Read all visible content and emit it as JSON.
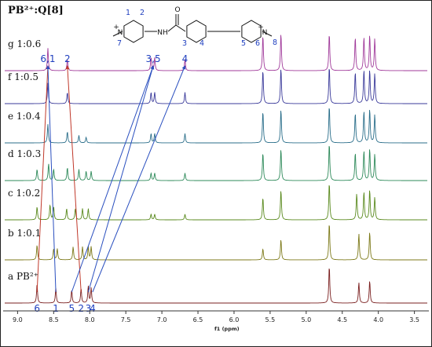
{
  "title": "PB²⁺:Q[8]",
  "molecule": {
    "atoms": {
      "amide_o": "O",
      "amide_nh": "NH",
      "n_left": "N",
      "n_right": "N",
      "charge": "+"
    },
    "numbers": [
      "1",
      "2",
      "3",
      "4",
      "5",
      "6",
      "7",
      "8"
    ]
  },
  "chart_data": {
    "type": "line",
    "title": "PB²⁺:Q[8]",
    "xlabel": "f1 (ppm)",
    "ylabel": "",
    "x_reversed": true,
    "xlim": [
      9.2,
      3.3
    ],
    "x_ticks": [
      "9.0",
      "8.5",
      "8.0",
      "7.5",
      "7.0",
      "6.5",
      "6.0",
      "5.5",
      "5.0",
      "4.5",
      "4.0",
      "3.5"
    ],
    "x_tick_values": [
      9.0,
      8.5,
      8.0,
      7.5,
      7.0,
      6.5,
      6.0,
      5.5,
      5.0,
      4.5,
      4.0,
      3.5
    ],
    "series": [
      {
        "name": "a PB²⁺",
        "color": "#7a1f1f",
        "peaks": [
          [
            8.73,
            0.5
          ],
          [
            8.47,
            0.4
          ],
          [
            8.25,
            0.35
          ],
          [
            8.12,
            0.4
          ],
          [
            8.02,
            0.45
          ],
          [
            7.98,
            0.4
          ],
          [
            4.68,
            1.0
          ],
          [
            4.27,
            0.55
          ],
          [
            4.12,
            0.6
          ]
        ]
      },
      {
        "name": "b 1:0.1",
        "color": "#7d7a1a",
        "peaks": [
          [
            8.73,
            0.4
          ],
          [
            8.5,
            0.3
          ],
          [
            8.45,
            0.3
          ],
          [
            8.23,
            0.35
          ],
          [
            8.1,
            0.35
          ],
          [
            8.02,
            0.35
          ],
          [
            7.98,
            0.35
          ],
          [
            5.6,
            0.3
          ],
          [
            5.35,
            0.55
          ],
          [
            4.68,
            1.0
          ],
          [
            4.27,
            0.7
          ],
          [
            4.12,
            0.75
          ]
        ]
      },
      {
        "name": "c 1:0.2",
        "color": "#5a8a1e",
        "peaks": [
          [
            8.73,
            0.35
          ],
          [
            8.55,
            0.4
          ],
          [
            8.5,
            0.35
          ],
          [
            8.32,
            0.3
          ],
          [
            8.2,
            0.3
          ],
          [
            8.1,
            0.3
          ],
          [
            8.02,
            0.3
          ],
          [
            7.15,
            0.15
          ],
          [
            7.1,
            0.15
          ],
          [
            6.68,
            0.15
          ],
          [
            5.6,
            0.6
          ],
          [
            5.35,
            0.8
          ],
          [
            4.68,
            1.0
          ],
          [
            4.3,
            0.7
          ],
          [
            4.2,
            0.75
          ],
          [
            4.12,
            0.8
          ],
          [
            4.05,
            0.6
          ]
        ]
      },
      {
        "name": "d 1:0.3",
        "color": "#2e8a5a",
        "peaks": [
          [
            8.73,
            0.3
          ],
          [
            8.57,
            0.45
          ],
          [
            8.5,
            0.3
          ],
          [
            8.31,
            0.35
          ],
          [
            8.15,
            0.3
          ],
          [
            8.05,
            0.25
          ],
          [
            7.98,
            0.25
          ],
          [
            7.15,
            0.2
          ],
          [
            7.1,
            0.2
          ],
          [
            6.68,
            0.2
          ],
          [
            5.6,
            0.75
          ],
          [
            5.35,
            0.85
          ],
          [
            4.68,
            1.0
          ],
          [
            4.32,
            0.75
          ],
          [
            4.2,
            0.8
          ],
          [
            4.12,
            0.85
          ],
          [
            4.05,
            0.7
          ]
        ]
      },
      {
        "name": "e 1:0.4",
        "color": "#2a6e8a",
        "peaks": [
          [
            8.58,
            0.5
          ],
          [
            8.31,
            0.3
          ],
          [
            8.15,
            0.2
          ],
          [
            8.05,
            0.15
          ],
          [
            7.15,
            0.25
          ],
          [
            7.1,
            0.25
          ],
          [
            6.68,
            0.25
          ],
          [
            5.6,
            0.85
          ],
          [
            5.35,
            0.9
          ],
          [
            4.68,
            1.0
          ],
          [
            4.32,
            0.8
          ],
          [
            4.2,
            0.85
          ],
          [
            4.12,
            0.9
          ],
          [
            4.05,
            0.75
          ]
        ]
      },
      {
        "name": "f 1:0.5",
        "color": "#3a3a9a",
        "peaks": [
          [
            8.58,
            0.55
          ],
          [
            8.31,
            0.3
          ],
          [
            7.15,
            0.3
          ],
          [
            7.1,
            0.3
          ],
          [
            6.68,
            0.3
          ],
          [
            5.6,
            0.9
          ],
          [
            5.35,
            0.95
          ],
          [
            4.68,
            1.0
          ],
          [
            4.32,
            0.85
          ],
          [
            4.2,
            0.9
          ],
          [
            4.12,
            0.9
          ],
          [
            4.05,
            0.8
          ]
        ]
      },
      {
        "name": "g 1:0.6",
        "color": "#a03a9a",
        "peaks": [
          [
            8.58,
            0.6
          ],
          [
            8.31,
            0.3
          ],
          [
            7.15,
            0.35
          ],
          [
            7.1,
            0.35
          ],
          [
            6.68,
            0.3
          ],
          [
            5.6,
            0.95
          ],
          [
            5.35,
            1.0
          ],
          [
            4.68,
            1.0
          ],
          [
            4.32,
            0.9
          ],
          [
            4.2,
            0.9
          ],
          [
            4.12,
            0.95
          ],
          [
            4.05,
            0.85
          ]
        ]
      }
    ],
    "peak_labels_bottom": [
      {
        "text": "6",
        "ppm": 8.73
      },
      {
        "text": "1",
        "ppm": 8.47
      },
      {
        "text": "5",
        "ppm": 8.25
      },
      {
        "text": "2",
        "ppm": 8.12
      },
      {
        "text": "3",
        "ppm": 8.02
      },
      {
        "text": "4",
        "ppm": 7.96
      }
    ],
    "peak_labels_top": [
      {
        "text": "6,1",
        "ppm": 8.58
      },
      {
        "text": "2",
        "ppm": 8.31
      },
      {
        "text": "3,5",
        "ppm": 7.12
      },
      {
        "text": "4",
        "ppm": 6.68
      }
    ],
    "connectors": [
      {
        "from_ppm": 8.73,
        "to_ppm": 8.58,
        "color": "#c0392b"
      },
      {
        "from_ppm": 8.47,
        "to_ppm": 8.58,
        "color": "#2a4fbf"
      },
      {
        "from_ppm": 8.12,
        "to_ppm": 8.31,
        "color": "#c0392b"
      },
      {
        "from_ppm": 8.25,
        "to_ppm": 7.12,
        "color": "#2a4fbf"
      },
      {
        "from_ppm": 8.02,
        "to_ppm": 7.12,
        "color": "#2a4fbf"
      },
      {
        "from_ppm": 7.96,
        "to_ppm": 6.68,
        "color": "#2a4fbf"
      }
    ]
  }
}
